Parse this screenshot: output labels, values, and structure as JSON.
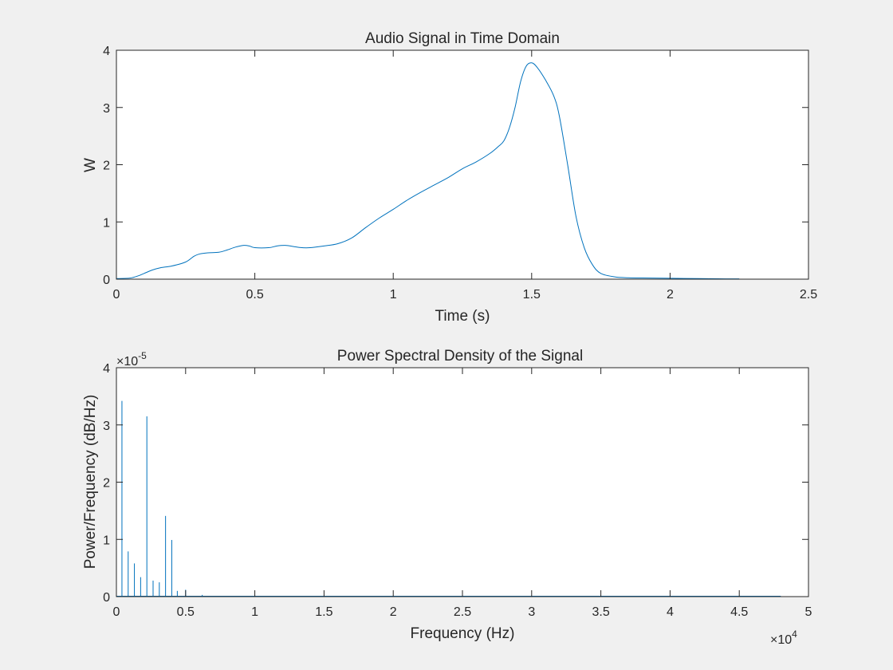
{
  "colors": {
    "background": "#f0f0f0",
    "axes_background": "#ffffff",
    "axes_edge": "#262626",
    "series": "#0072bd"
  },
  "chart_data": [
    {
      "type": "line",
      "title": "Audio Signal in Time Domain",
      "xlabel": "Time (s)",
      "ylabel": "W",
      "xlim": [
        0,
        2.5
      ],
      "ylim": [
        0,
        4
      ],
      "xticks": [
        0,
        0.5,
        1,
        1.5,
        2,
        2.5
      ],
      "xtick_labels": [
        "0",
        "0.5",
        "1",
        "1.5",
        "2",
        "2.5"
      ],
      "yticks": [
        0,
        1,
        2,
        3,
        4
      ],
      "ytick_labels": [
        "0",
        "1",
        "2",
        "3",
        "4"
      ],
      "exponent_label": "",
      "grid": false,
      "series": [
        {
          "x": [
            0,
            0.05,
            0.08,
            0.1,
            0.13,
            0.16,
            0.2,
            0.25,
            0.28,
            0.3,
            0.33,
            0.37,
            0.4,
            0.43,
            0.46,
            0.48,
            0.5,
            0.55,
            0.58,
            0.61,
            0.64,
            0.67,
            0.7,
            0.75,
            0.8,
            0.85,
            0.9,
            0.95,
            1.0,
            1.05,
            1.1,
            1.15,
            1.2,
            1.25,
            1.3,
            1.35,
            1.38,
            1.4,
            1.42,
            1.44,
            1.46,
            1.48,
            1.5,
            1.52,
            1.55,
            1.58,
            1.6,
            1.63,
            1.66,
            1.69,
            1.72,
            1.75,
            1.8,
            1.85,
            1.9,
            2.0,
            2.1,
            2.2,
            2.25
          ],
          "y": [
            0.01,
            0.02,
            0.06,
            0.1,
            0.16,
            0.2,
            0.23,
            0.3,
            0.4,
            0.44,
            0.46,
            0.47,
            0.51,
            0.56,
            0.59,
            0.58,
            0.55,
            0.55,
            0.58,
            0.59,
            0.57,
            0.55,
            0.55,
            0.58,
            0.62,
            0.72,
            0.9,
            1.07,
            1.22,
            1.38,
            1.52,
            1.65,
            1.78,
            1.93,
            2.05,
            2.2,
            2.32,
            2.42,
            2.65,
            3.0,
            3.45,
            3.72,
            3.78,
            3.7,
            3.48,
            3.2,
            2.85,
            2.0,
            1.1,
            0.55,
            0.25,
            0.1,
            0.04,
            0.025,
            0.02,
            0.015,
            0.01,
            0.005,
            0.005
          ]
        }
      ]
    },
    {
      "type": "line",
      "title": "Power Spectral Density of the Signal",
      "xlabel": "Frequency (Hz)",
      "ylabel": "Power/Frequency (dB/Hz)",
      "xlim": [
        0,
        5
      ],
      "ylim": [
        0,
        4
      ],
      "xticks": [
        0,
        0.5,
        1,
        1.5,
        2,
        2.5,
        3,
        3.5,
        4,
        4.5,
        5
      ],
      "xtick_labels": [
        "0",
        "0.5",
        "1",
        "1.5",
        "2",
        "2.5",
        "3",
        "3.5",
        "4",
        "4.5",
        "5"
      ],
      "yticks": [
        0,
        1,
        2,
        3,
        4
      ],
      "ytick_labels": [
        "0",
        "1",
        "2",
        "3",
        "4"
      ],
      "x_multiplier": "×10",
      "x_multiplier_exponent": "4",
      "y_multiplier": "×10",
      "y_multiplier_exponent": "-5",
      "grid": false,
      "x_end": 4.8,
      "series": [
        {
          "x": [
            0.04,
            0.085,
            0.13,
            0.175,
            0.22,
            0.265,
            0.31,
            0.355,
            0.4,
            0.44,
            0.5,
            0.62
          ],
          "y": [
            3.42,
            0.79,
            0.58,
            0.34,
            3.15,
            0.28,
            0.25,
            1.41,
            0.99,
            0.1,
            0.12,
            0.03
          ]
        }
      ]
    }
  ]
}
